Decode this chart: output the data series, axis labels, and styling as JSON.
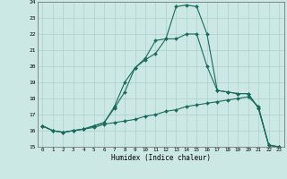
{
  "xlabel": "Humidex (Indice chaleur)",
  "x_values": [
    0,
    1,
    2,
    3,
    4,
    5,
    6,
    7,
    8,
    9,
    10,
    11,
    12,
    13,
    14,
    15,
    16,
    17,
    18,
    19,
    20,
    21,
    22,
    23
  ],
  "line1": [
    16.3,
    16.0,
    15.9,
    16.0,
    16.1,
    16.2,
    16.4,
    16.5,
    16.6,
    16.7,
    16.9,
    17.0,
    17.2,
    17.3,
    17.5,
    17.6,
    17.7,
    17.8,
    17.9,
    18.0,
    18.1,
    17.5,
    15.1,
    15.0
  ],
  "line2": [
    16.3,
    16.0,
    15.9,
    16.0,
    16.1,
    16.3,
    16.5,
    17.4,
    18.4,
    19.9,
    20.4,
    20.8,
    21.7,
    21.7,
    22.0,
    22.0,
    20.0,
    18.5,
    18.4,
    18.3,
    18.3,
    17.4,
    15.1,
    15.0
  ],
  "line3": [
    16.3,
    16.0,
    15.9,
    16.0,
    16.1,
    16.3,
    16.5,
    17.5,
    19.0,
    19.9,
    20.5,
    21.6,
    21.7,
    23.7,
    23.8,
    23.7,
    22.0,
    18.5,
    18.4,
    18.3,
    18.3,
    17.4,
    15.1,
    15.0
  ],
  "bg_color": "#cce8e5",
  "grid_color": "#aad0cc",
  "line_color": "#1a6b5c",
  "ylim": [
    15,
    24
  ],
  "xlim": [
    -0.5,
    23.5
  ],
  "yticks": [
    15,
    16,
    17,
    18,
    19,
    20,
    21,
    22,
    23,
    24
  ],
  "xtick_labels": [
    "0",
    "1",
    "2",
    "3",
    "4",
    "5",
    "6",
    "7",
    "8",
    "9",
    "10",
    "11",
    "12",
    "13",
    "14",
    "15",
    "16",
    "17",
    "18",
    "19",
    "20",
    "21",
    "22",
    "23"
  ]
}
